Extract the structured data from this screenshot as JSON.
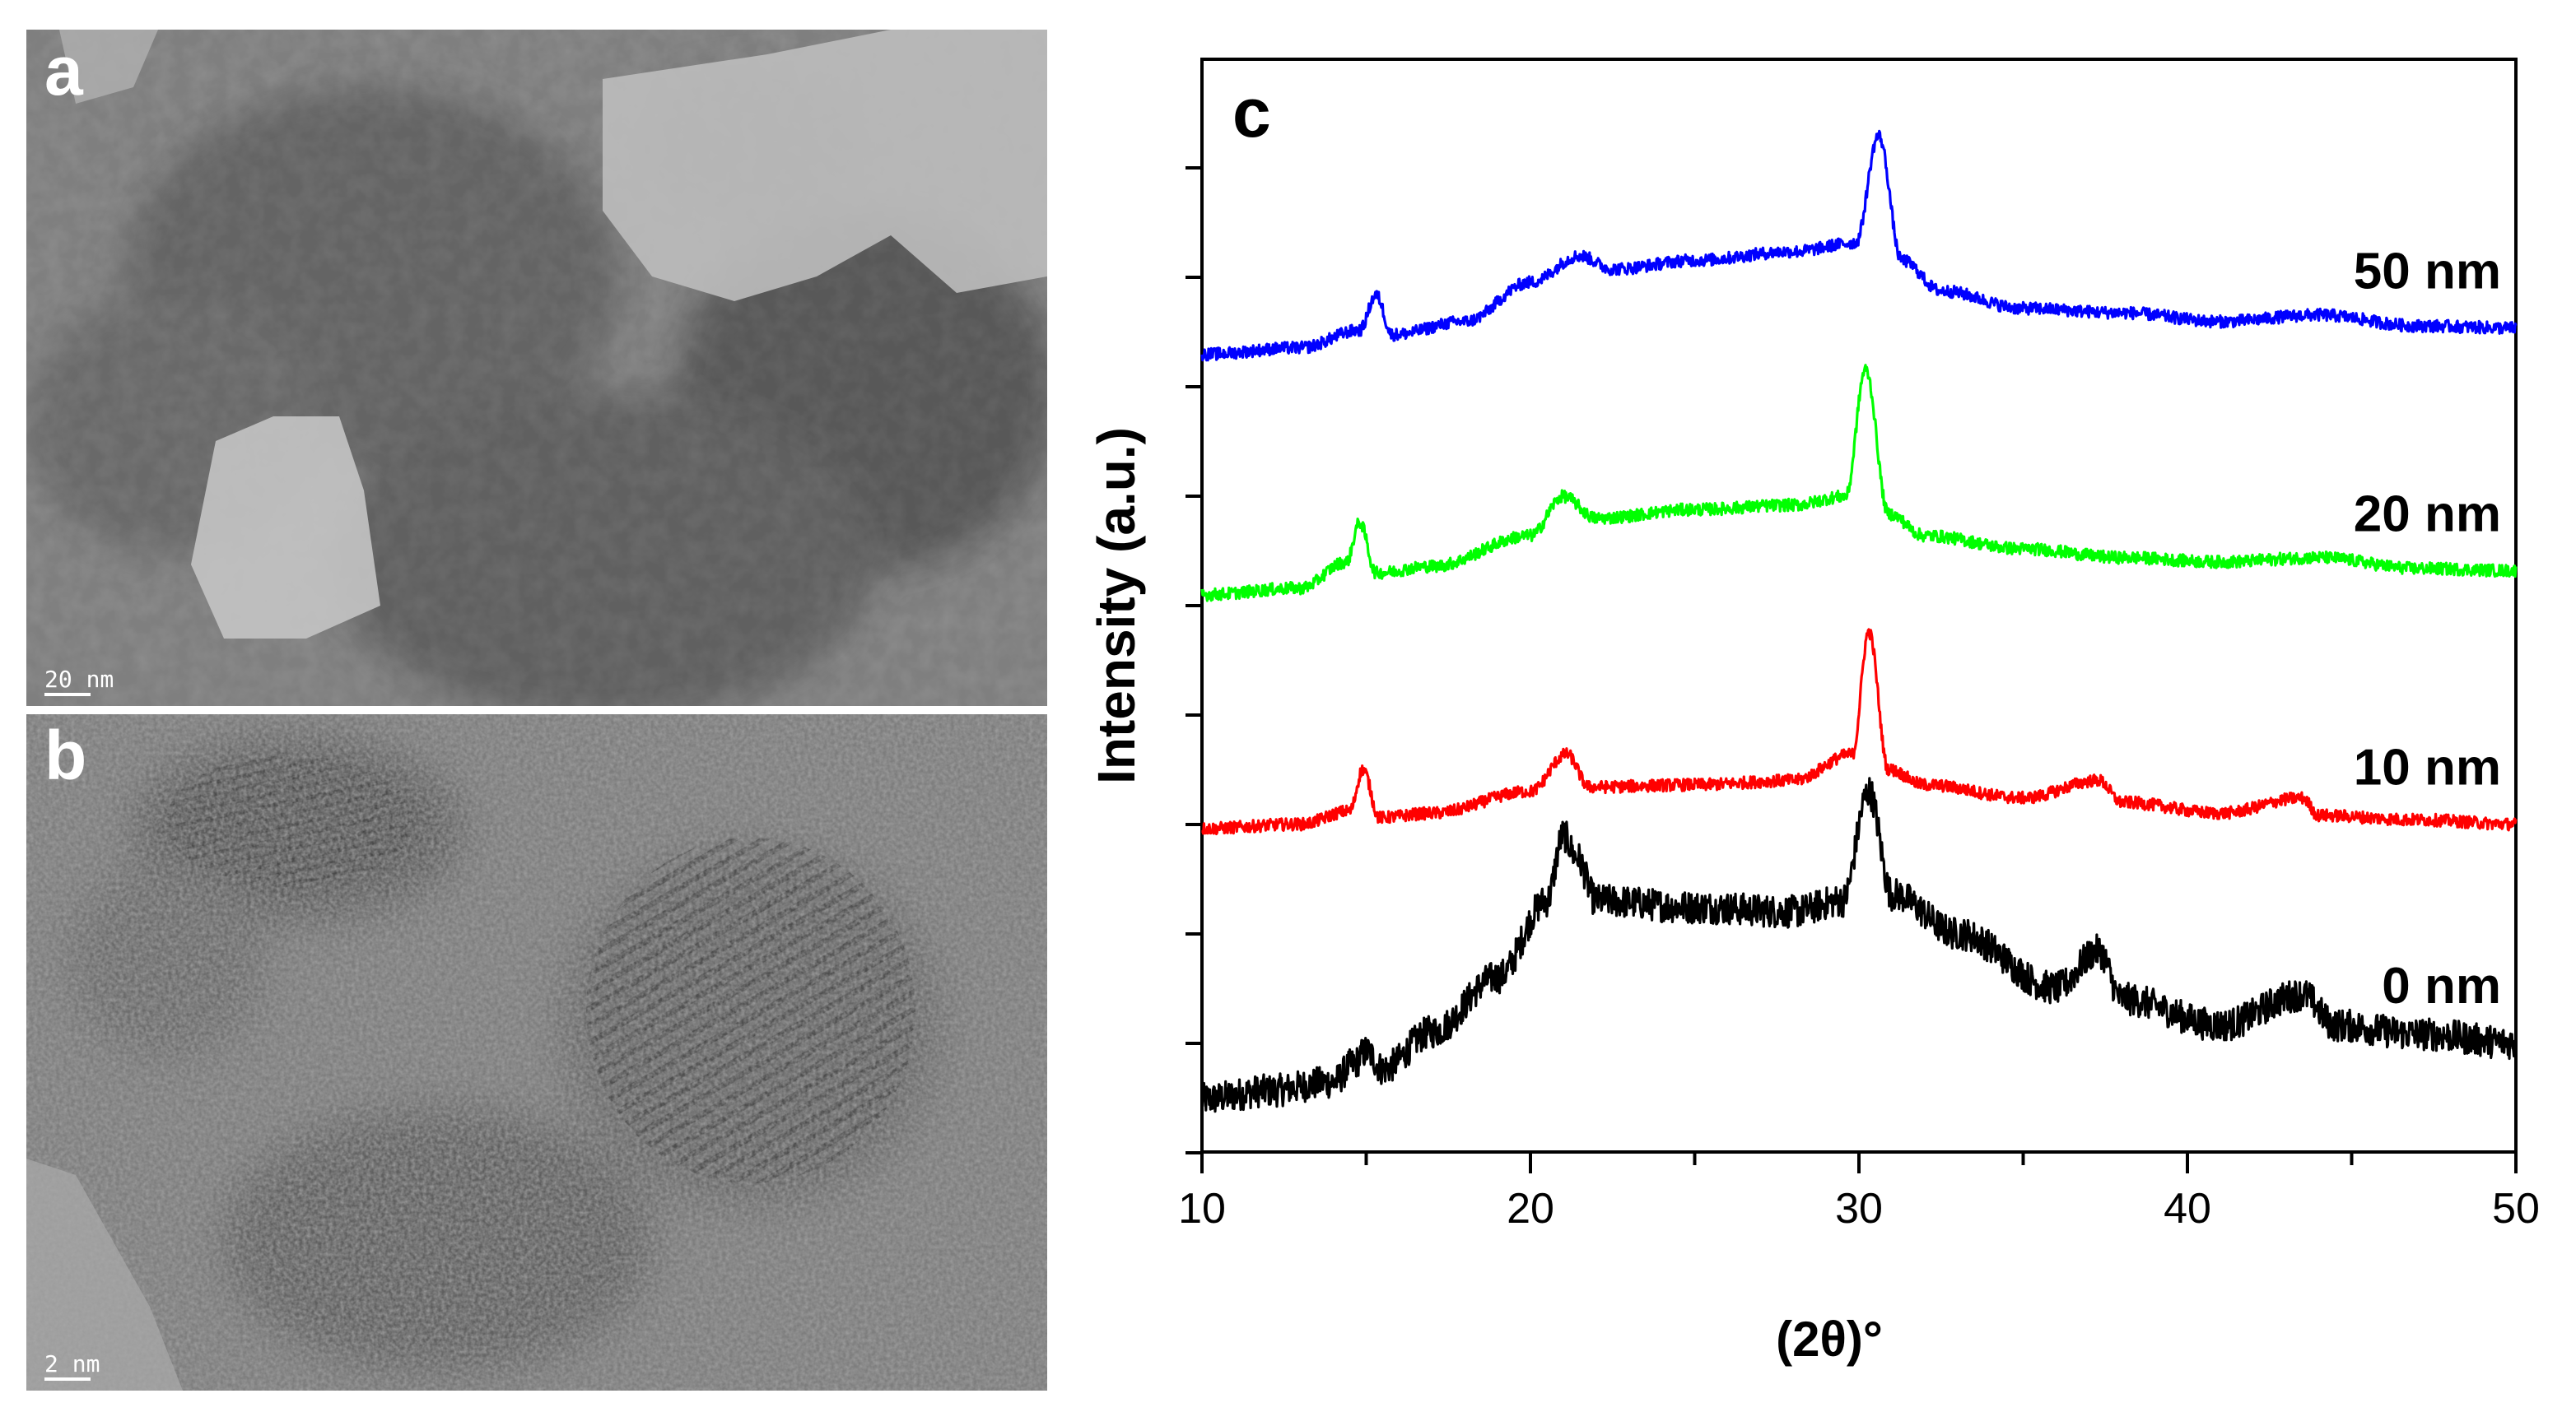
{
  "panels": {
    "a": {
      "letter": "a",
      "scale_label": "20 nm"
    },
    "b": {
      "letter": "b",
      "scale_label": "2 nm"
    },
    "c": {
      "letter": "c"
    }
  },
  "chart_data": {
    "type": "line",
    "panel_label": "c",
    "xlabel": "(2θ)°",
    "ylabel": "Intensity (a.u.)",
    "xlim": [
      10,
      50
    ],
    "x_ticks": [
      10,
      20,
      30,
      40,
      50
    ],
    "y_tick_labels": "none",
    "grid": false,
    "series": [
      {
        "name": "0 nm",
        "color": "#000000",
        "x": [
          10,
          12,
          14,
          14.6,
          15,
          15.5,
          17,
          19,
          20.5,
          21,
          21.4,
          22,
          25,
          28,
          29.5,
          30.3,
          31,
          33,
          36,
          37.3,
          38,
          41,
          43.5,
          44.5,
          47,
          50
        ],
        "y": [
          0.04,
          0.08,
          0.12,
          0.2,
          0.26,
          0.18,
          0.35,
          0.6,
          0.95,
          1.25,
          1.15,
          0.95,
          0.92,
          0.9,
          0.95,
          1.45,
          0.98,
          0.8,
          0.55,
          0.72,
          0.5,
          0.38,
          0.52,
          0.38,
          0.34,
          0.3
        ]
      },
      {
        "name": "10 nm",
        "color": "#ff0000",
        "x": [
          10,
          13,
          14.5,
          14.9,
          15.4,
          17,
          20,
          21.1,
          21.8,
          25,
          28,
          29.8,
          30.3,
          30.9,
          32,
          35,
          37.3,
          38,
          41,
          43.5,
          44,
          47,
          50
        ],
        "y": [
          1.28,
          1.3,
          1.36,
          1.55,
          1.33,
          1.35,
          1.45,
          1.62,
          1.47,
          1.48,
          1.5,
          1.62,
          2.18,
          1.55,
          1.48,
          1.42,
          1.5,
          1.4,
          1.35,
          1.42,
          1.34,
          1.32,
          1.3
        ]
      },
      {
        "name": "20 nm",
        "color": "#00ff00",
        "x": [
          10,
          13,
          14.4,
          14.8,
          15.3,
          17,
          20,
          21,
          22,
          25,
          28,
          29.6,
          30.2,
          30.9,
          32,
          35,
          38,
          41,
          44,
          47,
          50
        ],
        "y": [
          2.35,
          2.38,
          2.5,
          2.68,
          2.45,
          2.48,
          2.62,
          2.8,
          2.7,
          2.74,
          2.76,
          2.8,
          3.38,
          2.72,
          2.62,
          2.56,
          2.52,
          2.5,
          2.52,
          2.47,
          2.46
        ]
      },
      {
        "name": "50 nm",
        "color": "#0000ff",
        "x": [
          10,
          13,
          14.8,
          15.3,
          15.8,
          18,
          20,
          21.5,
          22.5,
          25,
          28,
          29.9,
          30.6,
          31.3,
          32.5,
          35,
          38,
          41,
          44,
          47,
          50
        ],
        "y": [
          3.45,
          3.48,
          3.56,
          3.72,
          3.54,
          3.6,
          3.78,
          3.9,
          3.84,
          3.88,
          3.92,
          3.96,
          4.45,
          3.88,
          3.74,
          3.66,
          3.64,
          3.6,
          3.63,
          3.58,
          3.57
        ]
      }
    ]
  }
}
